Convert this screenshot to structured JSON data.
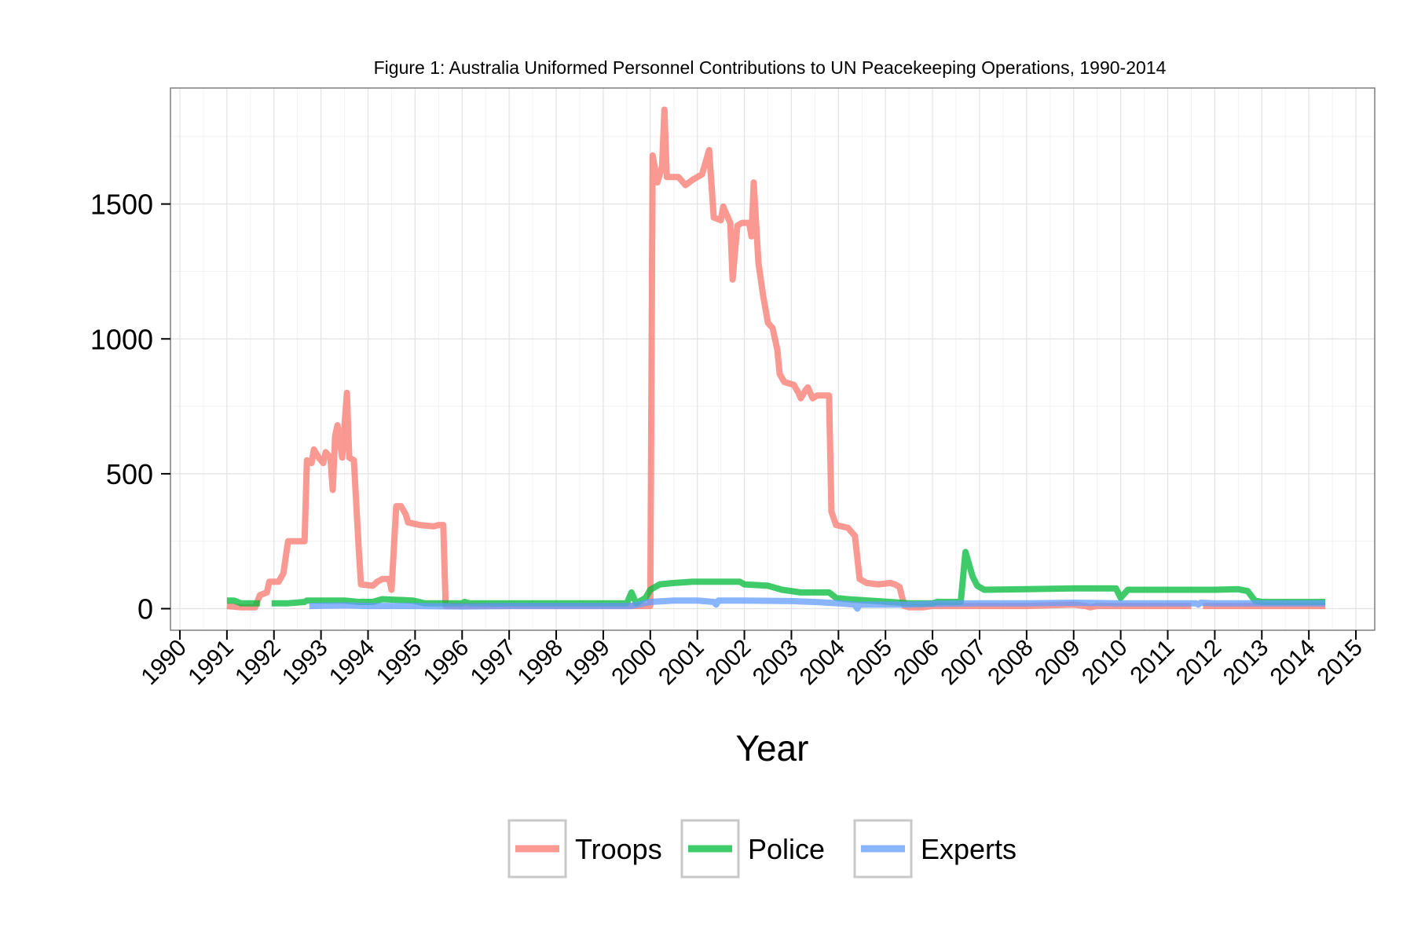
{
  "chart_data": {
    "type": "line",
    "title": "Figure 1: Australia Uniformed Personnel Contributions to UN Peacekeeping Operations, 1990-2014",
    "xlabel": "Year",
    "ylabel": "",
    "xlim": [
      1989.8,
      2015.4
    ],
    "ylim": [
      -80,
      1930
    ],
    "x_ticks": [
      1990,
      1991,
      1992,
      1993,
      1994,
      1995,
      1996,
      1997,
      1998,
      1999,
      2000,
      2001,
      2002,
      2003,
      2004,
      2005,
      2006,
      2007,
      2008,
      2009,
      2010,
      2011,
      2012,
      2013,
      2014,
      2015
    ],
    "x_tick_labels": [
      "1990",
      "1991",
      "1992",
      "1993",
      "1994",
      "1995",
      "1996",
      "1997",
      "1998",
      "1999",
      "2000",
      "2001",
      "2002",
      "2003",
      "2004",
      "2005",
      "2006",
      "2007",
      "2008",
      "2009",
      "2010",
      "2011",
      "2012",
      "2013",
      "2014",
      "2015"
    ],
    "y_ticks": [
      0,
      500,
      1000,
      1500
    ],
    "y_tick_labels": [
      "0",
      "500",
      "1000",
      "1500"
    ],
    "grid": true,
    "legend_position": "bottom",
    "series": [
      {
        "name": "Troops",
        "color": "#F8766D",
        "segments": [
          [
            [
              1991.0,
              10
            ],
            [
              1991.3,
              5
            ],
            [
              1991.6,
              5
            ],
            [
              1991.7,
              50
            ],
            [
              1991.85,
              60
            ],
            [
              1991.9,
              100
            ],
            [
              1992.1,
              100
            ],
            [
              1992.2,
              130
            ],
            [
              1992.3,
              250
            ],
            [
              1992.6,
              250
            ],
            [
              1992.65,
              250
            ],
            [
              1992.7,
              550
            ],
            [
              1992.8,
              540
            ],
            [
              1992.85,
              590
            ],
            [
              1992.95,
              560
            ],
            [
              1993.05,
              540
            ],
            [
              1993.1,
              580
            ],
            [
              1993.2,
              560
            ],
            [
              1993.25,
              440
            ],
            [
              1993.3,
              640
            ],
            [
              1993.35,
              680
            ],
            [
              1993.45,
              560
            ],
            [
              1993.55,
              800
            ],
            [
              1993.6,
              560
            ],
            [
              1993.7,
              550
            ],
            [
              1993.8,
              230
            ],
            [
              1993.85,
              90
            ],
            [
              1994.1,
              85
            ],
            [
              1994.2,
              100
            ],
            [
              1994.3,
              110
            ],
            [
              1994.45,
              110
            ],
            [
              1994.5,
              70
            ],
            [
              1994.6,
              380
            ],
            [
              1994.7,
              380
            ],
            [
              1994.8,
              350
            ],
            [
              1994.85,
              320
            ],
            [
              1995.1,
              310
            ],
            [
              1995.4,
              305
            ],
            [
              1995.5,
              310
            ],
            [
              1995.6,
              310
            ],
            [
              1995.65,
              10
            ],
            [
              2000.0,
              10
            ],
            [
              2000.05,
              1680
            ],
            [
              2000.15,
              1580
            ],
            [
              2000.25,
              1640
            ],
            [
              2000.3,
              1850
            ],
            [
              2000.35,
              1600
            ],
            [
              2000.6,
              1600
            ],
            [
              2000.75,
              1570
            ],
            [
              2000.9,
              1590
            ],
            [
              2001.1,
              1610
            ],
            [
              2001.25,
              1700
            ],
            [
              2001.35,
              1450
            ],
            [
              2001.5,
              1440
            ],
            [
              2001.55,
              1490
            ],
            [
              2001.7,
              1430
            ],
            [
              2001.75,
              1220
            ],
            [
              2001.85,
              1420
            ],
            [
              2001.95,
              1430
            ],
            [
              2002.1,
              1430
            ],
            [
              2002.15,
              1380
            ],
            [
              2002.2,
              1580
            ],
            [
              2002.3,
              1280
            ],
            [
              2002.4,
              1160
            ],
            [
              2002.5,
              1060
            ],
            [
              2002.6,
              1040
            ],
            [
              2002.7,
              960
            ],
            [
              2002.75,
              870
            ],
            [
              2002.85,
              840
            ],
            [
              2003.05,
              830
            ],
            [
              2003.15,
              800
            ],
            [
              2003.2,
              780
            ],
            [
              2003.3,
              810
            ],
            [
              2003.35,
              820
            ],
            [
              2003.45,
              780
            ],
            [
              2003.55,
              790
            ],
            [
              2003.8,
              790
            ],
            [
              2003.85,
              360
            ],
            [
              2003.95,
              310
            ],
            [
              2004.2,
              300
            ],
            [
              2004.35,
              270
            ],
            [
              2004.45,
              110
            ],
            [
              2004.6,
              95
            ],
            [
              2004.85,
              90
            ],
            [
              2005.1,
              95
            ],
            [
              2005.2,
              90
            ],
            [
              2005.3,
              80
            ],
            [
              2005.4,
              10
            ],
            [
              2005.5,
              5
            ],
            [
              2005.8,
              5
            ],
            [
              2006.0,
              10
            ],
            [
              2008.0,
              10
            ],
            [
              2009.0,
              15
            ],
            [
              2009.25,
              10
            ],
            [
              2009.35,
              5
            ],
            [
              2009.5,
              10
            ],
            [
              2010.0,
              10
            ],
            [
              2011.5,
              10
            ]
          ],
          [
            [
              2011.75,
              10
            ],
            [
              2013.0,
              10
            ],
            [
              2014.0,
              10
            ],
            [
              2014.35,
              10
            ]
          ]
        ]
      },
      {
        "name": "Police",
        "color": "#00BA38",
        "segments": [
          [
            [
              1991.0,
              30
            ],
            [
              1991.15,
              30
            ],
            [
              1991.3,
              20
            ],
            [
              1991.7,
              20
            ]
          ],
          [
            [
              1991.95,
              20
            ],
            [
              1992.3,
              20
            ],
            [
              1992.65,
              25
            ],
            [
              1992.7,
              30
            ],
            [
              1993.5,
              30
            ],
            [
              1993.8,
              25
            ],
            [
              1994.1,
              25
            ],
            [
              1994.3,
              35
            ],
            [
              1994.95,
              30
            ],
            [
              1995.2,
              20
            ],
            [
              1996.0,
              20
            ],
            [
              1996.05,
              25
            ],
            [
              1996.15,
              20
            ],
            [
              1999.5,
              20
            ],
            [
              1999.6,
              60
            ],
            [
              1999.7,
              20
            ],
            [
              1999.9,
              40
            ],
            [
              2000.0,
              70
            ],
            [
              2000.2,
              90
            ],
            [
              2000.5,
              95
            ],
            [
              2000.9,
              100
            ],
            [
              2001.9,
              100
            ],
            [
              2002.0,
              90
            ],
            [
              2002.5,
              85
            ],
            [
              2002.8,
              70
            ],
            [
              2003.2,
              60
            ],
            [
              2003.8,
              60
            ],
            [
              2003.95,
              40
            ],
            [
              2004.2,
              35
            ],
            [
              2005.5,
              20
            ],
            [
              2006.0,
              20
            ],
            [
              2006.1,
              25
            ],
            [
              2006.6,
              25
            ],
            [
              2006.7,
              210
            ],
            [
              2006.85,
              120
            ],
            [
              2006.95,
              85
            ],
            [
              2007.1,
              70
            ],
            [
              2008.0,
              72
            ],
            [
              2009.0,
              75
            ],
            [
              2009.9,
              75
            ],
            [
              2010.0,
              40
            ],
            [
              2010.15,
              70
            ],
            [
              2011.0,
              70
            ],
            [
              2012.0,
              70
            ],
            [
              2012.5,
              72
            ],
            [
              2012.7,
              65
            ],
            [
              2012.85,
              30
            ],
            [
              2013.0,
              25
            ],
            [
              2014.35,
              25
            ]
          ]
        ]
      },
      {
        "name": "Experts",
        "color": "#619CFF",
        "segments": [
          [
            [
              1992.75,
              10
            ],
            [
              1993.5,
              12
            ],
            [
              1994.0,
              10
            ],
            [
              1995.0,
              10
            ],
            [
              1996.0,
              8
            ],
            [
              1997.0,
              10
            ],
            [
              1998.0,
              10
            ],
            [
              1999.0,
              10
            ],
            [
              1999.6,
              10
            ],
            [
              2000.0,
              25
            ],
            [
              2000.5,
              30
            ],
            [
              2001.0,
              30
            ],
            [
              2001.35,
              25
            ],
            [
              2001.4,
              15
            ],
            [
              2001.45,
              30
            ],
            [
              2002.0,
              30
            ],
            [
              2003.0,
              28
            ],
            [
              2003.5,
              25
            ],
            [
              2004.0,
              20
            ],
            [
              2004.35,
              15
            ],
            [
              2004.4,
              0
            ],
            [
              2004.45,
              15
            ],
            [
              2005.0,
              15
            ],
            [
              2005.5,
              15
            ],
            [
              2006.0,
              18
            ],
            [
              2007.0,
              20
            ],
            [
              2008.0,
              20
            ],
            [
              2009.0,
              22
            ],
            [
              2010.0,
              20
            ],
            [
              2011.0,
              20
            ],
            [
              2011.6,
              20
            ],
            [
              2011.65,
              15
            ],
            [
              2011.7,
              22
            ],
            [
              2012.0,
              20
            ],
            [
              2013.0,
              20
            ],
            [
              2014.35,
              20
            ]
          ]
        ]
      }
    ]
  }
}
